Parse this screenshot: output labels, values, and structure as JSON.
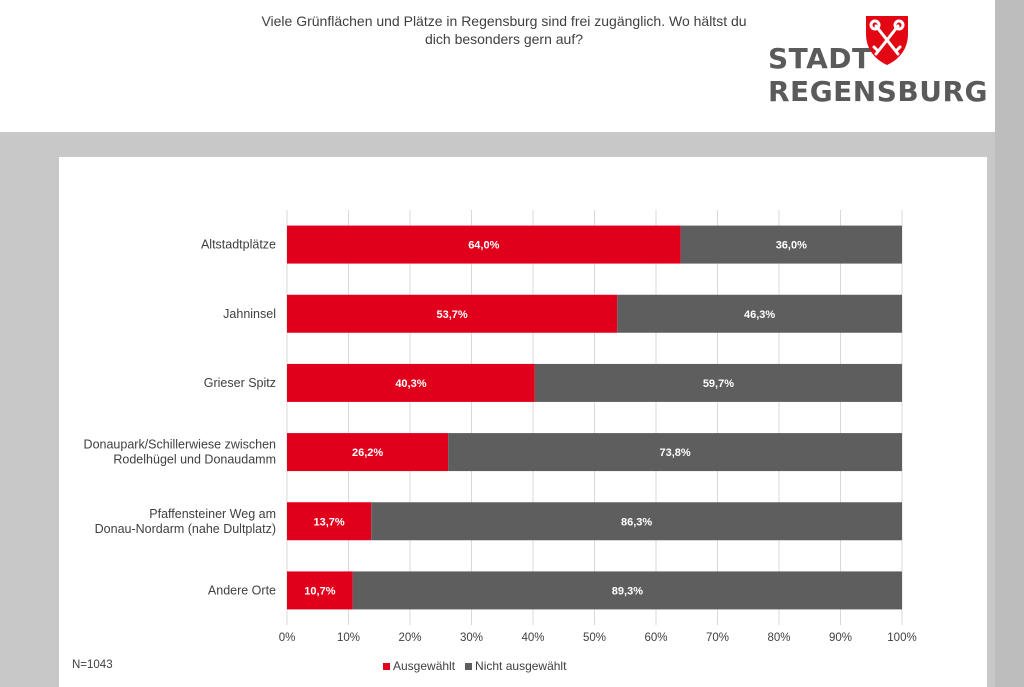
{
  "logo": {
    "line1": "STADT",
    "line2": "REGENSBURG",
    "crest_color": "#e30613"
  },
  "note": "N=1043",
  "colors": {
    "selected": "#e1001b",
    "not_selected": "#5e5e5e"
  },
  "chart_data": {
    "type": "bar",
    "orientation": "horizontal",
    "stacked": true,
    "title": "Viele Grünflächen und Plätze in Regensburg sind frei zugänglich. Wo hältst du dich besonders gern auf?",
    "title_lines": [
      "Viele Grünflächen und Plätze in Regensburg sind frei zugänglich. Wo hältst du",
      "dich besonders gern auf?"
    ],
    "categories": [
      [
        "Altstadtplätze"
      ],
      [
        "Jahninsel"
      ],
      [
        "Grieser Spitz"
      ],
      [
        "Donaupark/Schillerwiese zwischen",
        "Rodelhügel und Donaudamm"
      ],
      [
        "Pfaffensteiner Weg am",
        "Donau-Nordarm (nahe Dultplatz)"
      ],
      [
        "Andere Orte"
      ]
    ],
    "series": [
      {
        "name": "Ausgewählt",
        "color": "#e1001b",
        "values": [
          64.0,
          53.7,
          40.3,
          26.2,
          13.7,
          10.7
        ],
        "labels": [
          "64,0%",
          "53,7%",
          "40,3%",
          "26,2%",
          "13,7%",
          "10,7%"
        ]
      },
      {
        "name": "Nicht ausgewählt",
        "color": "#5e5e5e",
        "values": [
          36.0,
          46.3,
          59.7,
          73.8,
          86.3,
          89.3
        ],
        "labels": [
          "36,0%",
          "46,3%",
          "59,7%",
          "73,8%",
          "86,3%",
          "89,3%"
        ]
      }
    ],
    "xlim": [
      0,
      100
    ],
    "xticks": [
      "0%",
      "10%",
      "20%",
      "30%",
      "40%",
      "50%",
      "60%",
      "70%",
      "80%",
      "90%",
      "100%"
    ],
    "grid": true,
    "legend": "bottom"
  }
}
